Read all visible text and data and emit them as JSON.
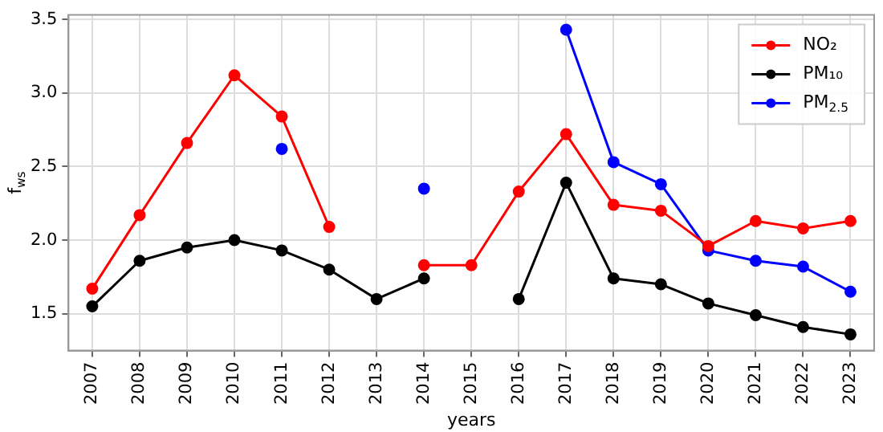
{
  "chart_data": {
    "type": "line",
    "xlabel": "years",
    "ylabel": "f$_{ws}$",
    "categories": [
      "2007",
      "2008",
      "2009",
      "2010",
      "2011",
      "2012",
      "2013",
      "2014",
      "2015",
      "2016",
      "2017",
      "2018",
      "2019",
      "2020",
      "2021",
      "2022",
      "2023"
    ],
    "series": [
      {
        "name": "NO₂",
        "color": "#ff0000",
        "values": [
          1.67,
          2.17,
          2.66,
          3.12,
          2.84,
          2.09,
          null,
          1.83,
          1.83,
          2.33,
          2.72,
          2.24,
          2.2,
          1.96,
          2.13,
          2.08,
          2.13
        ]
      },
      {
        "name": "PM₁₀",
        "color": "#000000",
        "values": [
          1.55,
          1.86,
          1.95,
          2.0,
          1.93,
          1.8,
          1.6,
          1.74,
          null,
          1.6,
          2.39,
          1.74,
          1.7,
          1.57,
          1.49,
          1.41,
          1.36
        ]
      },
      {
        "name": "PM$_{2.5}$",
        "color": "#0000ff",
        "values": [
          null,
          null,
          null,
          null,
          2.62,
          null,
          null,
          2.35,
          null,
          null,
          3.43,
          2.53,
          2.38,
          1.93,
          1.86,
          1.82,
          1.65
        ]
      }
    ],
    "ylim": [
      1.25,
      3.53
    ],
    "yticks": [
      {
        "value": 1.5,
        "label": "1.5"
      },
      {
        "value": 2.0,
        "label": "2.0"
      },
      {
        "value": 2.5,
        "label": "2.5"
      },
      {
        "value": 3.0,
        "label": "3.0"
      },
      {
        "value": 3.5,
        "label": "3.5"
      }
    ],
    "grid": true,
    "legend": "top right",
    "marker": "circle",
    "line_style": "solid"
  }
}
